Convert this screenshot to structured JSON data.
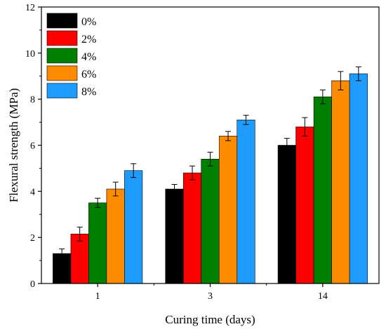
{
  "chart_data": {
    "type": "bar",
    "xlabel": "Curing time (days)",
    "ylabel": "Flexural strength (MPa)",
    "categories": [
      "1",
      "3",
      "14"
    ],
    "ylim": [
      0,
      12
    ],
    "yticks": [
      0,
      2,
      4,
      6,
      8,
      10,
      12
    ],
    "grid": false,
    "legend_position": "top-left",
    "series": [
      {
        "name": "0%",
        "color": "#000000",
        "values": [
          1.3,
          4.1,
          6.0
        ],
        "errors": [
          0.2,
          0.2,
          0.3
        ]
      },
      {
        "name": "2%",
        "color": "#ff0000",
        "values": [
          2.15,
          4.8,
          6.8
        ],
        "errors": [
          0.3,
          0.3,
          0.4
        ]
      },
      {
        "name": "4%",
        "color": "#008000",
        "values": [
          3.5,
          5.4,
          8.1
        ],
        "errors": [
          0.2,
          0.3,
          0.3
        ]
      },
      {
        "name": "6%",
        "color": "#ff8c00",
        "values": [
          4.1,
          6.4,
          8.8
        ],
        "errors": [
          0.3,
          0.2,
          0.4
        ]
      },
      {
        "name": "8%",
        "color": "#1e9bff",
        "values": [
          4.9,
          7.1,
          9.1
        ],
        "errors": [
          0.3,
          0.2,
          0.3
        ]
      }
    ]
  }
}
